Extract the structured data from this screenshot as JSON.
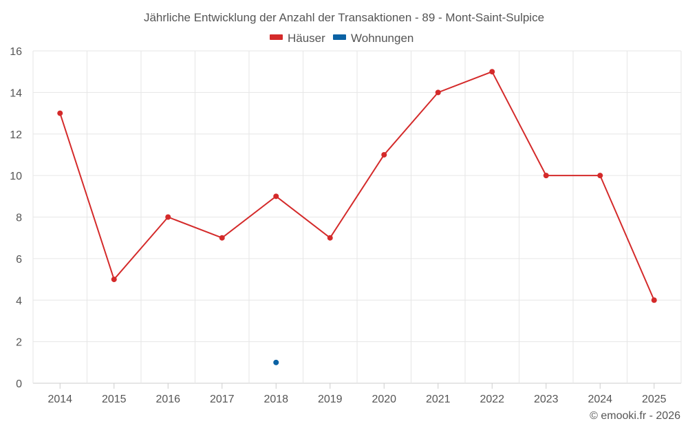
{
  "chart_data": {
    "type": "line",
    "title": "Jährliche Entwicklung der Anzahl der Transaktionen - 89 - Mont-Saint-Sulpice",
    "categories": [
      "2014",
      "2015",
      "2016",
      "2017",
      "2018",
      "2019",
      "2020",
      "2021",
      "2022",
      "2023",
      "2024",
      "2025"
    ],
    "series": [
      {
        "name": "Häuser",
        "color": "#d42a2a",
        "values": [
          13,
          5,
          8,
          7,
          9,
          7,
          11,
          14,
          15,
          10,
          10,
          4
        ]
      },
      {
        "name": "Wohnungen",
        "color": "#0b62a4",
        "values": [
          null,
          null,
          null,
          null,
          1,
          null,
          null,
          null,
          null,
          null,
          null,
          null
        ]
      }
    ],
    "ylim": [
      0,
      16
    ],
    "yticks": [
      0,
      2,
      4,
      6,
      8,
      10,
      12,
      14,
      16
    ],
    "xlabel": "",
    "ylabel": "",
    "grid": true,
    "legend": "top-center"
  },
  "credit": "© emooki.fr - 2026"
}
